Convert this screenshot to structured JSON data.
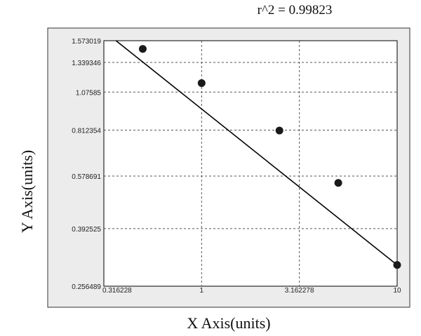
{
  "chart_data": {
    "type": "scatter",
    "annotation": "r^2  =  0.99823",
    "xlabel": "X Axis(units)",
    "ylabel": "Y Axis(units)",
    "x_scale": "log",
    "y_scale": "log",
    "xlim": [
      0.316228,
      10
    ],
    "ylim": [
      0.256489,
      1.573019
    ],
    "x_ticks": [
      "0.316228",
      "1",
      "3.162278",
      "10"
    ],
    "y_ticks": [
      "1.573019",
      "1.339346",
      "1.07585",
      "0.812354",
      "0.578691",
      "0.392525",
      "0.256489"
    ],
    "x_grid": [
      1,
      3.162278
    ],
    "y_grid": [
      1.339346,
      1.07585,
      0.812354,
      0.578691,
      0.392525
    ],
    "grid": true,
    "series": [
      {
        "points": [
          {
            "x": 0.5,
            "y": 1.48
          },
          {
            "x": 1.0,
            "y": 1.15
          },
          {
            "x": 2.5,
            "y": 0.81
          },
          {
            "x": 5.0,
            "y": 0.55
          },
          {
            "x": 10.0,
            "y": 0.3
          }
        ]
      }
    ],
    "fit_line": {
      "x": [
        0.316228,
        10
      ],
      "y": [
        1.69,
        0.3
      ]
    },
    "colors": {
      "background": "#ffffff",
      "panel": "#ececec",
      "plot": "#ffffff",
      "marker": "#1a1a1a",
      "line": "#000000"
    }
  }
}
